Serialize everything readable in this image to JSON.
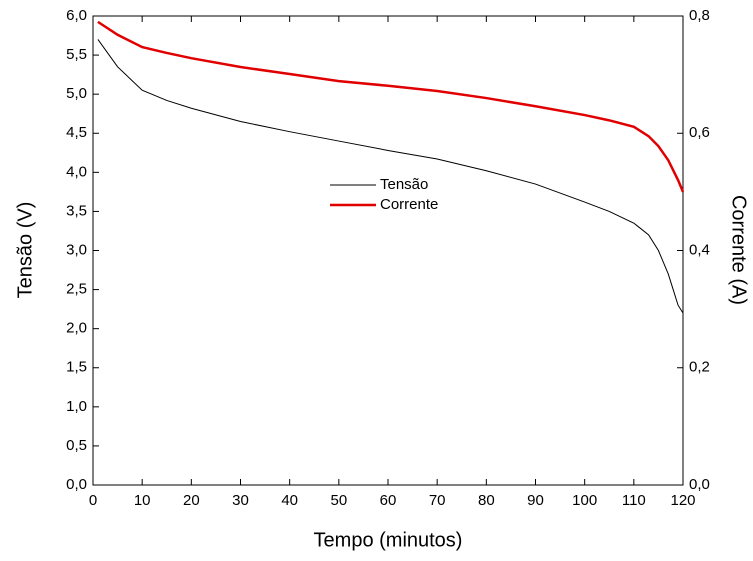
{
  "chart_data": {
    "type": "line",
    "x_label": "Tempo (minutos)",
    "y_label": "Tensão (V)",
    "y2_label": "Corrente (A)",
    "x": [
      1,
      5,
      10,
      15,
      20,
      30,
      40,
      50,
      60,
      70,
      80,
      90,
      100,
      105,
      110,
      113,
      115,
      117,
      118,
      119,
      120
    ],
    "series": [
      {
        "name": "Tensão",
        "color": "#000000",
        "axis": "y",
        "values": [
          5.7,
          5.35,
          5.05,
          4.92,
          4.82,
          4.65,
          4.52,
          4.4,
          4.28,
          4.17,
          4.02,
          3.85,
          3.62,
          3.5,
          3.35,
          3.2,
          3.0,
          2.7,
          2.5,
          2.3,
          2.2
        ]
      },
      {
        "name": "Corrente",
        "color": "#e00000",
        "axis": "y2",
        "values": [
          0.79,
          0.768,
          0.747,
          0.737,
          0.728,
          0.713,
          0.701,
          0.689,
          0.681,
          0.672,
          0.66,
          0.646,
          0.631,
          0.622,
          0.611,
          0.595,
          0.578,
          0.554,
          0.537,
          0.52,
          0.5
        ]
      }
    ],
    "xlim": [
      0,
      120
    ],
    "xticks": [
      0,
      10,
      20,
      30,
      40,
      50,
      60,
      70,
      80,
      90,
      100,
      110,
      120
    ],
    "ylim": [
      0,
      6
    ],
    "yticks": [
      {
        "value": 0,
        "label": "0,0"
      },
      {
        "value": 0.5,
        "label": "0,5"
      },
      {
        "value": 1,
        "label": "1,0"
      },
      {
        "value": 1.5,
        "label": "1,5"
      },
      {
        "value": 2,
        "label": "2,0"
      },
      {
        "value": 2.5,
        "label": "2,5"
      },
      {
        "value": 3,
        "label": "3,0"
      },
      {
        "value": 3.5,
        "label": "3,5"
      },
      {
        "value": 4,
        "label": "4,0"
      },
      {
        "value": 4.5,
        "label": "4,5"
      },
      {
        "value": 5,
        "label": "5,0"
      },
      {
        "value": 5.5,
        "label": "5,5"
      },
      {
        "value": 6,
        "label": "6,0"
      }
    ],
    "y2lim": [
      0,
      0.8
    ],
    "y2ticks": [
      {
        "value": 0,
        "label": "0,0"
      },
      {
        "value": 0.2,
        "label": "0,2"
      },
      {
        "value": 0.4,
        "label": "0,4"
      },
      {
        "value": 0.6,
        "label": "0,6"
      },
      {
        "value": 0.8,
        "label": "0,8"
      }
    ],
    "legend": "center",
    "grid": false
  }
}
